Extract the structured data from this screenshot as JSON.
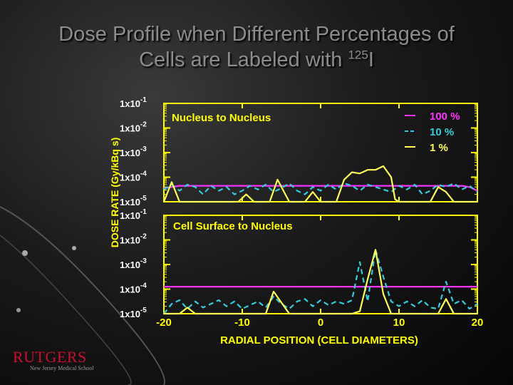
{
  "slide": {
    "title_line1": "Dose Profile when Different Percentages of",
    "title_line2_pre": "Cells are Labeled with ",
    "title_sup": "125",
    "title_post": "I"
  },
  "logo": {
    "name": "RUTGERS",
    "sub": "New Jersey Medical School"
  },
  "chart_data": {
    "type": "line",
    "ylabel": "DOSE RATE (Gy/kBq s)",
    "xlabel": "RADIAL POSITION (CELL DIAMETERS)",
    "x_ticks": [
      "-20",
      "-10",
      "0",
      "10",
      "20"
    ],
    "y_ticks": [
      {
        "base": "1x10",
        "exp": "-1"
      },
      {
        "base": "1x10",
        "exp": "-2"
      },
      {
        "base": "1x10",
        "exp": "-3"
      },
      {
        "base": "1x10",
        "exp": "-4"
      },
      {
        "base": "1x10",
        "exp": "-5"
      }
    ],
    "xlim": [
      -20,
      20
    ],
    "ylim_log10": [
      -5,
      -1
    ],
    "legend_position": "top-right",
    "legend": [
      {
        "name": "100 %",
        "color": "#ff33ff"
      },
      {
        "name": "10 %",
        "color": "#33ccdd"
      },
      {
        "name": "1 %",
        "color": "#ffff55"
      }
    ],
    "panels": [
      {
        "label": "Nucleus to Nucleus",
        "series": [
          {
            "name": "100 %",
            "color": "#ff33ff",
            "dash": "solid",
            "x": [
              -20,
              -18,
              -15,
              -10,
              -5,
              0,
              5,
              10,
              15,
              18,
              19,
              20
            ],
            "log10y": [
              -4.45,
              -4.35,
              -4.35,
              -4.35,
              -4.35,
              -4.35,
              -4.35,
              -4.35,
              -4.35,
              -4.35,
              -4.4,
              -4.55
            ]
          },
          {
            "name": "10 %",
            "color": "#33ccdd",
            "dash": "dashed",
            "x": [
              -20,
              -19,
              -18,
              -17,
              -16,
              -15,
              -14,
              -13,
              -12,
              -11,
              -10,
              -9,
              -8,
              -7,
              -6,
              -5,
              -4,
              -3,
              -2,
              -1,
              0,
              1,
              2,
              3,
              4,
              5,
              6,
              7,
              8,
              9,
              10,
              11,
              12,
              13,
              14,
              15,
              16,
              17,
              18,
              19,
              20
            ],
            "log10y": [
              -4.5,
              -4.3,
              -4.55,
              -4.3,
              -4.4,
              -4.7,
              -4.35,
              -4.55,
              -4.4,
              -4.7,
              -4.55,
              -4.35,
              -4.5,
              -4.3,
              -4.6,
              -4.45,
              -4.25,
              -4.55,
              -4.7,
              -4.4,
              -4.55,
              -4.3,
              -4.5,
              -4.25,
              -4.35,
              -4.55,
              -4.3,
              -4.4,
              -4.5,
              -4.6,
              -4.35,
              -4.5,
              -4.3,
              -4.7,
              -4.55,
              -4.3,
              -4.4,
              -4.25,
              -4.5,
              -4.35,
              -4.6
            ]
          },
          {
            "name": "1 %",
            "color": "#ffff55",
            "dash": "solid",
            "x": [
              -20,
              -19,
              -18,
              -17,
              -15,
              -10.5,
              -9.5,
              -8.5,
              -6.5,
              -5.5,
              -4,
              -2,
              -1,
              0,
              1,
              2,
              3,
              4,
              5,
              6,
              7,
              8,
              9,
              9.5,
              10,
              12,
              14,
              15,
              16,
              17,
              18,
              20
            ],
            "log10y": [
              -5,
              -4.2,
              -5,
              -5,
              -5,
              -5,
              -4.7,
              -5,
              -5,
              -4.1,
              -5,
              -5,
              -4.6,
              -5,
              -5,
              -5,
              -4.1,
              -3.8,
              -3.85,
              -3.7,
              -3.7,
              -3.55,
              -4.0,
              -4.9,
              -5,
              -5,
              -5,
              -4.4,
              -4.6,
              -5,
              -5,
              -5
            ]
          }
        ]
      },
      {
        "label": "Cell Surface to Nucleus",
        "series": [
          {
            "name": "100 %",
            "color": "#ff33ff",
            "dash": "solid",
            "x": [
              -20,
              -10,
              0,
              10,
              20
            ],
            "log10y": [
              -3.9,
              -3.9,
              -3.9,
              -3.9,
              -3.9
            ]
          },
          {
            "name": "10 %",
            "color": "#33ccdd",
            "dash": "dashed",
            "x": [
              -20,
              -19,
              -18,
              -17,
              -16,
              -15,
              -14,
              -13,
              -12,
              -11,
              -10,
              -9,
              -8,
              -7,
              -6,
              -5,
              -4,
              -3,
              -2,
              -1,
              0,
              1,
              2,
              3,
              4,
              5,
              6,
              7,
              8,
              9,
              10,
              11,
              12,
              13,
              14,
              15,
              16,
              17,
              18,
              19,
              20
            ],
            "log10y": [
              -5,
              -4.6,
              -4.45,
              -4.8,
              -4.5,
              -4.75,
              -4.6,
              -4.45,
              -4.7,
              -4.5,
              -4.8,
              -4.65,
              -4.5,
              -4.75,
              -4.3,
              -4.6,
              -4.8,
              -4.5,
              -4.4,
              -4.7,
              -4.45,
              -4.65,
              -4.5,
              -4.6,
              -4.45,
              -2.9,
              -4.5,
              -2.4,
              -3.5,
              -4.5,
              -4.7,
              -4.5,
              -4.7,
              -4.45,
              -4.75,
              -4.8,
              -3.7,
              -4.6,
              -4.45,
              -4.8,
              -4.6
            ]
          },
          {
            "name": "1 %",
            "color": "#ffff55",
            "dash": "solid",
            "x": [
              -20,
              -18,
              -17,
              -16,
              -14,
              -13,
              -12,
              -10,
              -8,
              -7,
              -6,
              -4,
              -2,
              0,
              2,
              3,
              4,
              5,
              6,
              7,
              8,
              9,
              10,
              12,
              14,
              15,
              16,
              17,
              18,
              20
            ],
            "log10y": [
              -5,
              -5,
              -4.75,
              -5,
              -5,
              -5,
              -5,
              -5,
              -5,
              -5,
              -4.1,
              -5,
              -5,
              -5,
              -5,
              -5,
              -5,
              -4.9,
              -3.6,
              -2.4,
              -4.2,
              -5,
              -5,
              -5,
              -5,
              -5,
              -4.4,
              -5,
              -5,
              -5
            ]
          }
        ]
      }
    ]
  }
}
